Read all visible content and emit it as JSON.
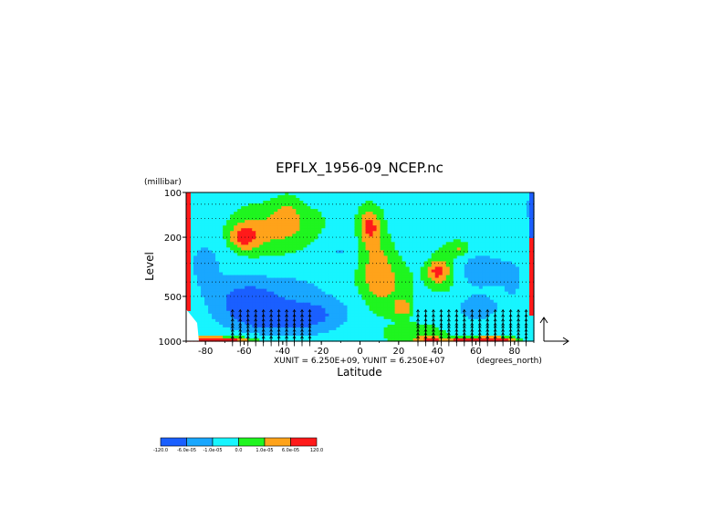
{
  "chart_data": {
    "type": "heatmap",
    "title": "EPFLX_1956-09_NCEP.nc",
    "xlabel": "Latitude",
    "ylabel": "Level",
    "y_unit": "(millibar)",
    "x_unit": "(degrees_north)",
    "x_ticks": [
      "-80",
      "-60",
      "-40",
      "-20",
      "0",
      "20",
      "40",
      "60",
      "80"
    ],
    "x_tick_values": [
      -80,
      -60,
      -40,
      -20,
      0,
      20,
      40,
      60,
      80
    ],
    "y_ticks": [
      "100",
      "200",
      "500",
      "1000"
    ],
    "y_tick_values": [
      100,
      200,
      500,
      1000
    ],
    "xlim": [
      -90,
      90
    ],
    "ylim": [
      1000,
      100
    ],
    "y_scale": "log",
    "vector_units": "XUNIT = 6.250E+09, YUNIT = 6.250E+07",
    "colorbar": {
      "colors": [
        "#1a5fff",
        "#19a7ff",
        "#17f5ff",
        "#1ff51f",
        "#ffa31a",
        "#ff1a1a"
      ],
      "labels": [
        "-120.0",
        "-6.0e-05",
        "-1.0e-05",
        "0.0",
        "1.0e-05",
        "6.0e-05",
        "120.0"
      ]
    },
    "color_levels": [
      "#1a5fff",
      "#19a7ff",
      "#17f5ff",
      "#1ff51f",
      "#ffa31a",
      "#ff1a1a"
    ],
    "blobs": [
      {
        "lat": -58,
        "p": 520,
        "r_lat": 18,
        "r_p": 0.32,
        "v": -2.2
      },
      {
        "lat": -45,
        "p": 700,
        "r_lat": 22,
        "r_p": 0.22,
        "v": -2.0
      },
      {
        "lat": -25,
        "p": 650,
        "r_lat": 20,
        "r_p": 0.3,
        "v": -1.5
      },
      {
        "lat": -80,
        "p": 300,
        "r_lat": 10,
        "r_p": 0.45,
        "v": -0.9
      },
      {
        "lat": -50,
        "p": 180,
        "r_lat": 16,
        "r_p": 0.35,
        "v": 0.9
      },
      {
        "lat": -60,
        "p": 200,
        "r_lat": 7,
        "r_p": 0.18,
        "v": 1.6
      },
      {
        "lat": -38,
        "p": 140,
        "r_lat": 6,
        "r_p": 0.25,
        "v": 0.7
      },
      {
        "lat": -30,
        "p": 170,
        "r_lat": 14,
        "r_p": 0.3,
        "v": 0.5
      },
      {
        "lat": 8,
        "p": 300,
        "r_lat": 10,
        "r_p": 0.6,
        "v": 0.9
      },
      {
        "lat": 5,
        "p": 170,
        "r_lat": 5,
        "r_p": 0.25,
        "v": 1.6
      },
      {
        "lat": 15,
        "p": 430,
        "r_lat": 12,
        "r_p": 0.4,
        "v": 0.6
      },
      {
        "lat": 22,
        "p": 600,
        "r_lat": 4,
        "r_p": 0.12,
        "v": 1.4
      },
      {
        "lat": 40,
        "p": 340,
        "r_lat": 5,
        "r_p": 0.15,
        "v": 1.5
      },
      {
        "lat": 45,
        "p": 330,
        "r_lat": 9,
        "r_p": 0.4,
        "v": 0.8
      },
      {
        "lat": 52,
        "p": 240,
        "r_lat": 5,
        "r_p": 0.1,
        "v": 0.8
      },
      {
        "lat": 30,
        "p": 900,
        "r_lat": 15,
        "r_p": 0.15,
        "v": 0.7
      },
      {
        "lat": 62,
        "p": 330,
        "r_lat": 14,
        "r_p": 0.25,
        "v": -1.3
      },
      {
        "lat": 60,
        "p": 600,
        "r_lat": 16,
        "r_p": 0.3,
        "v": -0.9
      },
      {
        "lat": 80,
        "p": 400,
        "r_lat": 8,
        "r_p": 0.45,
        "v": -0.6
      },
      {
        "lat": -30,
        "p": 400,
        "r_lat": 18,
        "r_p": 0.25,
        "v": -0.5
      },
      {
        "lat": 30,
        "p": 180,
        "r_lat": 12,
        "r_p": 0.35,
        "v": -0.6
      },
      {
        "lat": -10,
        "p": 250,
        "r_lat": 10,
        "r_p": 0.3,
        "v": -0.7
      },
      {
        "lat": 88,
        "p": 130,
        "r_lat": 6,
        "r_p": 0.3,
        "v": -0.8
      }
    ],
    "surface_bands": [
      {
        "lat": -75,
        "v": 3.0,
        "width": 18
      },
      {
        "lat": -85,
        "v": 2.6,
        "width": 8
      },
      {
        "lat": 58,
        "v": 2.6,
        "width": 14
      },
      {
        "lat": 72,
        "v": 1.8,
        "width": 8
      },
      {
        "lat": 36,
        "v": 1.5,
        "width": 6
      }
    ],
    "vector_columns": {
      "lats": [
        -66,
        -62,
        -58,
        -54,
        -50,
        -46,
        -42,
        -38,
        -34,
        -30,
        -26,
        30,
        34,
        38,
        42,
        46,
        50,
        54,
        58,
        62,
        66,
        70,
        74,
        78,
        82,
        86
      ],
      "levels": [
        1000,
        950,
        900,
        850,
        800,
        750,
        700,
        650
      ]
    }
  }
}
